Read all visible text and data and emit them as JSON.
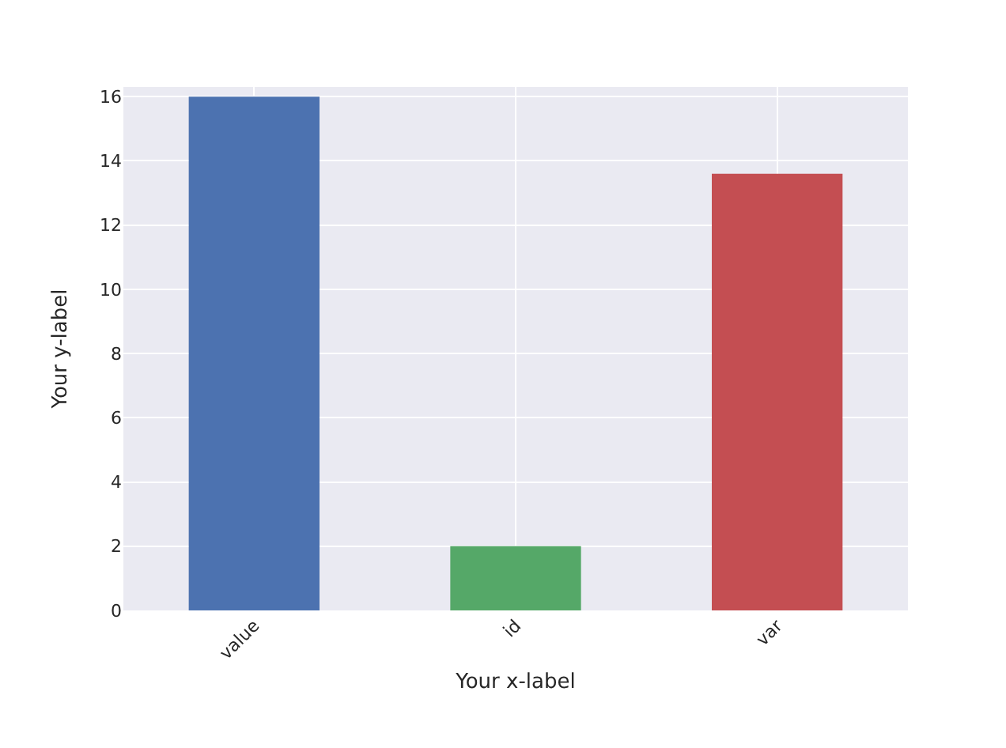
{
  "chart_data": {
    "type": "bar",
    "xlabel": "Your x-label",
    "ylabel": "Your y-label",
    "categories": [
      "value",
      "id",
      "var"
    ],
    "values": [
      16,
      2,
      13.6
    ],
    "colors": [
      "#4c72b0",
      "#55a868",
      "#c44e52"
    ],
    "ylim": [
      0,
      16.3
    ],
    "yticks": [
      0,
      2,
      4,
      6,
      8,
      10,
      12,
      14,
      16
    ],
    "grid": true
  }
}
